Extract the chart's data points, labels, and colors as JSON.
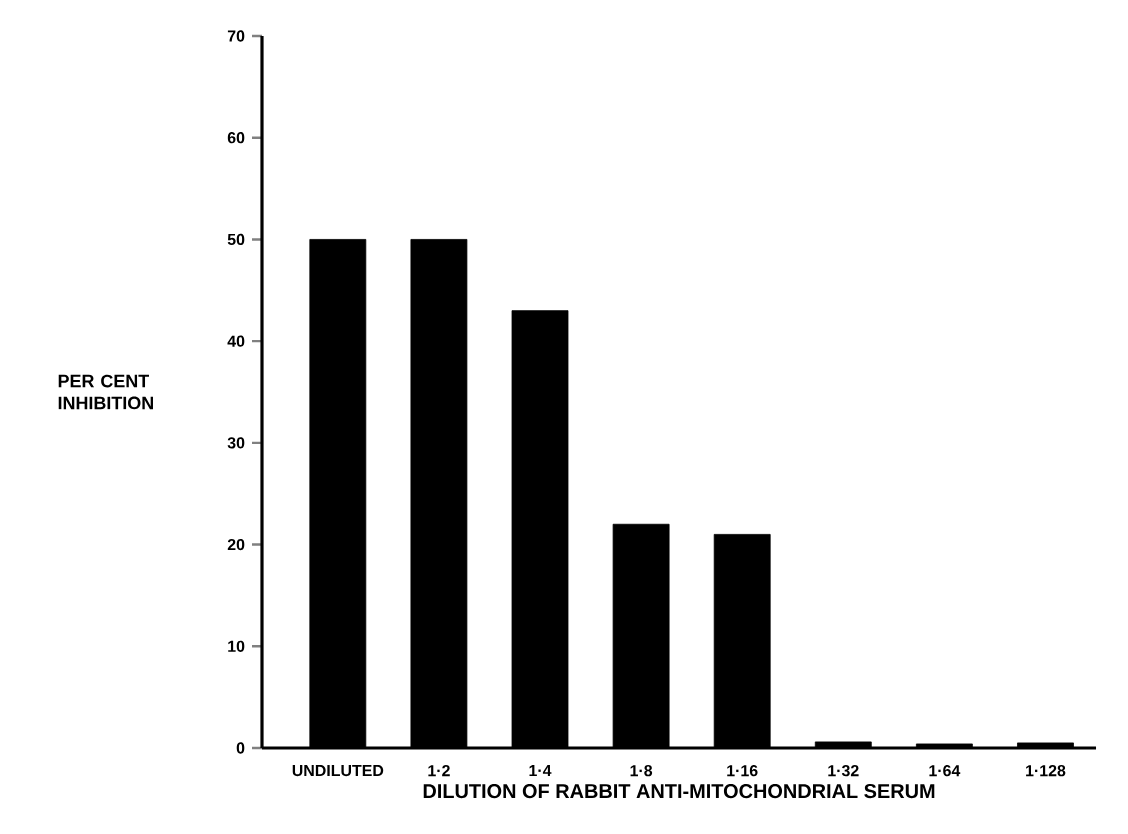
{
  "chart_data": {
    "type": "bar",
    "categories": [
      "UNDILUTED",
      "1·2",
      "1·4",
      "1·8",
      "1·16",
      "1·32",
      "1·64",
      "1·128"
    ],
    "values": [
      50,
      50,
      43,
      22,
      21,
      0.6,
      0.4,
      0.5
    ],
    "color": "#000000",
    "xlabel": "DILUTION OF RABBIT ANTI-MITOCHONDRIAL SERUM",
    "ylabel": "PER CENT INHIBITION",
    "ylim": [
      0,
      70
    ],
    "yticks": [
      0,
      10,
      20,
      30,
      40,
      50,
      60,
      70
    ],
    "grid": false
  }
}
